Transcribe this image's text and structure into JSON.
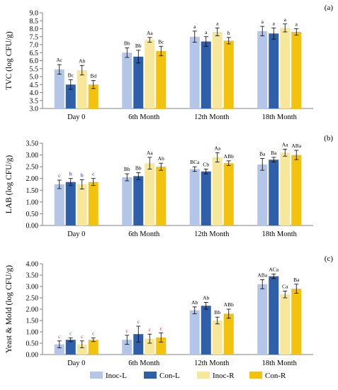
{
  "chart_data": [
    {
      "type": "bar",
      "panel": "(a)",
      "ylabel": "TVC (log CFU/g)",
      "ylim": [
        3.0,
        9.0
      ],
      "yticks": [
        "3.0",
        "3.5",
        "4.0",
        "4.5",
        "5.0",
        "5.5",
        "6.0",
        "6.5",
        "7.0",
        "7.5",
        "8.0",
        "8.5",
        "9.0"
      ],
      "categories": [
        "Day 0",
        "6th Month",
        "12th Month",
        "18th Month"
      ],
      "series": [
        {
          "name": "Inoc-L",
          "values": [
            5.45,
            6.5,
            7.5,
            7.85
          ],
          "errors": [
            0.3,
            0.3,
            0.35,
            0.3
          ],
          "labels": [
            "Ac",
            "Bb",
            "a",
            "a"
          ]
        },
        {
          "name": "Con-L",
          "values": [
            4.5,
            6.25,
            7.2,
            7.7
          ],
          "errors": [
            0.3,
            0.4,
            0.3,
            0.35
          ],
          "labels": [
            "Bc",
            "Bb",
            "a",
            "a"
          ]
        },
        {
          "name": "Inoc-R",
          "values": [
            5.4,
            7.3,
            7.8,
            8.05
          ],
          "errors": [
            0.3,
            0.15,
            0.25,
            0.25
          ],
          "labels": [
            "Ab",
            "Aa",
            "a",
            "a"
          ]
        },
        {
          "name": "Con-R",
          "values": [
            4.5,
            6.6,
            7.25,
            7.8
          ],
          "errors": [
            0.25,
            0.3,
            0.2,
            0.2
          ],
          "labels": [
            "Bd",
            "Bc",
            "b",
            "a"
          ]
        }
      ]
    },
    {
      "type": "bar",
      "panel": "(b)",
      "ylabel": "LAB (log CFU/g)",
      "ylim": [
        0.0,
        3.5
      ],
      "yticks": [
        "0.00",
        "0.50",
        "1.00",
        "1.50",
        "2.00",
        "2.50",
        "3.00",
        "3.50"
      ],
      "categories": [
        "Day 0",
        "6th Month",
        "12th Month",
        "18th Month"
      ],
      "series": [
        {
          "name": "Inoc-L",
          "values": [
            1.75,
            2.05,
            2.4,
            2.6
          ],
          "errors": [
            0.18,
            0.15,
            0.1,
            0.25
          ],
          "labels": [
            "c",
            "Bb",
            "BCa",
            "Ba"
          ]
        },
        {
          "name": "Con-L",
          "values": [
            1.85,
            2.1,
            2.3,
            2.8
          ],
          "errors": [
            0.15,
            0.15,
            0.1,
            0.1
          ],
          "labels": [
            "b",
            "Bb",
            "Cb",
            "Ba"
          ]
        },
        {
          "name": "Inoc-R",
          "values": [
            1.75,
            2.65,
            2.9,
            3.1
          ],
          "errors": [
            0.2,
            0.25,
            0.2,
            0.15
          ],
          "labels": [
            "b",
            "Aa",
            "Aa",
            "Aa"
          ]
        },
        {
          "name": "Con-R",
          "values": [
            1.85,
            2.5,
            2.65,
            3.0
          ],
          "errors": [
            0.15,
            0.15,
            0.1,
            0.2
          ],
          "labels": [
            "c",
            "Ab",
            "ABb",
            "ABa"
          ]
        }
      ]
    },
    {
      "type": "bar",
      "panel": "(c)",
      "ylabel": "Yeast & Mold (log CFU/g)",
      "ylim": [
        0.0,
        4.0
      ],
      "yticks": [
        "0.00",
        "0.50",
        "1.00",
        "1.50",
        "2.00",
        "2.50",
        "3.00",
        "3.50",
        "4.00"
      ],
      "categories": [
        "Day 0",
        "6th Month",
        "12th Month",
        "18th Month"
      ],
      "series": [
        {
          "name": "Inoc-L",
          "values": [
            0.45,
            0.65,
            1.95,
            3.1
          ],
          "errors": [
            0.15,
            0.2,
            0.15,
            0.2
          ],
          "labels": [
            "c",
            "c",
            "Ab",
            "ABa"
          ]
        },
        {
          "name": "Con-L",
          "values": [
            0.65,
            0.9,
            2.15,
            3.45
          ],
          "errors": [
            0.08,
            0.35,
            0.15,
            0.1
          ],
          "labels": [
            "c",
            "c",
            "Ab",
            "ACa"
          ]
        },
        {
          "name": "Inoc-R",
          "values": [
            0.45,
            0.7,
            1.5,
            2.65
          ],
          "errors": [
            0.15,
            0.2,
            0.15,
            0.15
          ],
          "labels": [
            "c",
            "c",
            "Bb",
            "Ca"
          ]
        },
        {
          "name": "Con-R",
          "values": [
            0.65,
            0.75,
            1.8,
            2.9
          ],
          "errors": [
            0.08,
            0.2,
            0.2,
            0.2
          ],
          "labels": [
            "c",
            "c",
            "ABb",
            "Ba"
          ]
        }
      ]
    }
  ],
  "legend": [
    "Inoc-L",
    "Con-L",
    "Inoc-R",
    "Con-R"
  ],
  "colors": {
    "Inoc-L": "#b4c6e7",
    "Con-L": "#2f5fa8",
    "Inoc-R": "#f7e79a",
    "Con-R": "#f2c20c",
    "error_bar": "#000000",
    "axis": "#808080"
  },
  "label_colors": {
    "default": "#000000",
    "panel_b_day0": "#1a1aa0",
    "panel_c_day0_6m": "#c0245c",
    "panel_c_day0_con_l": "#1f8a4a"
  }
}
